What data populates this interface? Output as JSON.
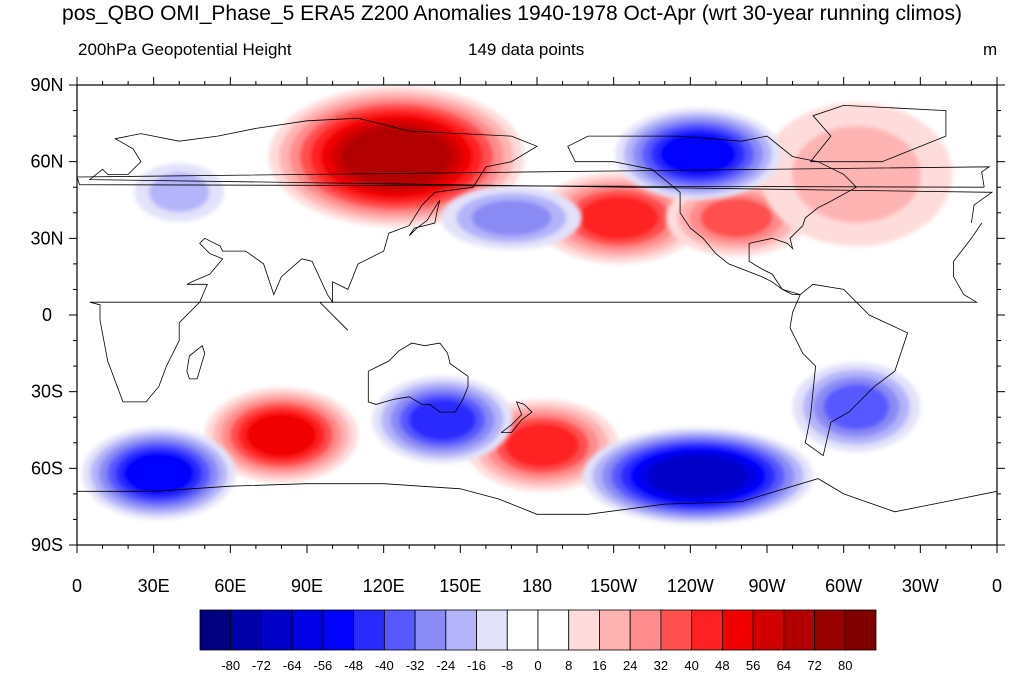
{
  "title": "pos_QBO OMI_Phase_5 ERA5 Z200 Anomalies 1940-1978 Oct-Apr (wrt 30-year running climos)",
  "left_subtitle": "200hPa Geopotential Height",
  "center_subtitle": "149 data points",
  "units": "m",
  "chart_data": {
    "type": "heatmap",
    "title": "pos_QBO OMI_Phase_5 ERA5 Z200 Anomalies 1940-1978 Oct-Apr (wrt 30-year running climos)",
    "variable": "200hPa Geopotential Height",
    "units": "m",
    "n_points": 149,
    "projection": "cylindrical equidistant",
    "lon_range": [
      0,
      360
    ],
    "lat_range": [
      -90,
      90
    ],
    "x_ticks": [
      "0",
      "30E",
      "60E",
      "90E",
      "120E",
      "150E",
      "180",
      "150W",
      "120W",
      "90W",
      "60W",
      "30W",
      "0"
    ],
    "y_ticks": [
      "90N",
      "60N",
      "30N",
      "0",
      "30S",
      "60S",
      "90S"
    ],
    "contour_levels": [
      -80,
      -72,
      -64,
      -56,
      -48,
      -40,
      -32,
      -24,
      -16,
      -8,
      0,
      8,
      16,
      24,
      32,
      40,
      48,
      56,
      64,
      72,
      80
    ],
    "colors": [
      "#000080",
      "#0000a8",
      "#0000c8",
      "#0000e6",
      "#0000ff",
      "#2a2aff",
      "#5858ff",
      "#8a8af5",
      "#b4b4fa",
      "#e2e2fa",
      "#ffffff",
      "#ffffff",
      "#ffdcdc",
      "#ffb4b4",
      "#ff8c8c",
      "#ff5050",
      "#ff2020",
      "#f00000",
      "#d00000",
      "#b20000",
      "#960000",
      "#800000"
    ],
    "features": [
      {
        "lon": 125,
        "lat": 62,
        "value": 70
      },
      {
        "lon": 80,
        "lat": -47,
        "value": 50
      },
      {
        "lon": 182,
        "lat": -51,
        "value": 46
      },
      {
        "lon": 212,
        "lat": 38,
        "value": 42
      },
      {
        "lon": 258,
        "lat": 38,
        "value": 34
      },
      {
        "lon": 305,
        "lat": 55,
        "value": 22
      },
      {
        "lon": 243,
        "lat": 63,
        "value": -48
      },
      {
        "lon": 243,
        "lat": -63,
        "value": -66
      },
      {
        "lon": 32,
        "lat": -62,
        "value": -52
      },
      {
        "lon": 143,
        "lat": -41,
        "value": -42
      },
      {
        "lon": 170,
        "lat": 38,
        "value": -28
      },
      {
        "lon": 305,
        "lat": -36,
        "value": -36
      },
      {
        "lon": 40,
        "lat": 48,
        "value": -18
      }
    ]
  }
}
